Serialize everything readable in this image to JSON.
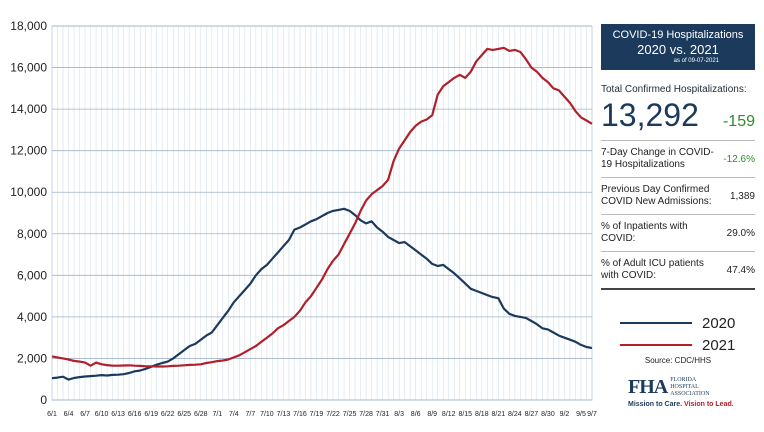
{
  "panel": {
    "title_line1": "COVID-19 Hospitalizations",
    "title_line2": "2020 vs. 2021",
    "as_of": "as of 09-07-2021",
    "total_label": "Total Confirmed Hospitalizations:",
    "total_value": "13,292",
    "total_delta": "-159",
    "stats": [
      {
        "label": "7-Day Change in COVID-19 Hospitalizations",
        "value": "-12.6%"
      },
      {
        "label": "Previous Day Confirmed COVID New Admissions:",
        "value": "1,389"
      },
      {
        "label": "% of Inpatients with COVID:",
        "value": "29.0%"
      },
      {
        "label": "% of Adult ICU patients with COVID:",
        "value": "47.4%"
      }
    ],
    "source": "Source: CDC/HHS",
    "logo_text": "FHA",
    "logo_name_1": "FLORIDA",
    "logo_name_2": "HOSPITAL",
    "logo_name_3": "ASSOCIATION",
    "tagline_1": "Mission to Care.",
    "tagline_2": "Vision to Lead."
  },
  "colors": {
    "navy": "#1b3a5c",
    "red": "#b0202a",
    "green": "#2e8b2e"
  },
  "chart_data": {
    "type": "line",
    "ylim": [
      0,
      18000
    ],
    "yticks": [
      "0",
      "2,000",
      "4,000",
      "6,000",
      "8,000",
      "10,000",
      "12,000",
      "14,000",
      "16,000",
      "18,000"
    ],
    "ytick_values": [
      0,
      2000,
      4000,
      6000,
      8000,
      10000,
      12000,
      14000,
      16000,
      18000
    ],
    "xlabels": [
      "6/1",
      "6/4",
      "6/7",
      "6/10",
      "6/13",
      "6/16",
      "6/19",
      "6/22",
      "6/25",
      "6/28",
      "7/1",
      "7/4",
      "7/7",
      "7/10",
      "7/13",
      "7/16",
      "7/19",
      "7/22",
      "7/25",
      "7/28",
      "7/31",
      "8/3",
      "8/6",
      "8/9",
      "8/12",
      "8/15",
      "8/18",
      "8/21",
      "8/24",
      "8/27",
      "8/30",
      "9/2",
      "9/5",
      "9/7"
    ],
    "xlabel_days": [
      0,
      3,
      6,
      9,
      12,
      15,
      18,
      21,
      24,
      27,
      30,
      33,
      36,
      39,
      42,
      45,
      48,
      51,
      54,
      57,
      60,
      63,
      66,
      69,
      72,
      75,
      78,
      81,
      84,
      87,
      90,
      93,
      96,
      98
    ],
    "x_days": [
      0,
      1,
      2,
      3,
      4,
      5,
      6,
      7,
      8,
      9,
      10,
      11,
      12,
      13,
      14,
      15,
      16,
      17,
      18,
      19,
      20,
      21,
      22,
      23,
      24,
      25,
      26,
      27,
      28,
      29,
      30,
      31,
      32,
      33,
      34,
      35,
      36,
      37,
      38,
      39,
      40,
      41,
      42,
      43,
      44,
      45,
      46,
      47,
      48,
      49,
      50,
      51,
      52,
      53,
      54,
      55,
      56,
      57,
      58,
      59,
      60,
      61,
      62,
      63,
      64,
      65,
      66,
      67,
      68,
      69,
      70,
      71,
      72,
      73,
      74,
      75,
      76,
      77,
      78,
      79,
      80,
      81,
      82,
      83,
      84,
      85,
      86,
      87,
      88,
      89,
      90,
      91,
      92,
      93,
      94,
      95,
      96,
      97,
      98
    ],
    "grid": true,
    "series": [
      {
        "name": "2020",
        "color": "#1b3a5c",
        "values": [
          1050,
          1080,
          1120,
          980,
          1060,
          1100,
          1130,
          1150,
          1170,
          1200,
          1180,
          1210,
          1220,
          1240,
          1300,
          1380,
          1420,
          1500,
          1600,
          1700,
          1780,
          1850,
          2000,
          2200,
          2400,
          2600,
          2700,
          2900,
          3100,
          3250,
          3600,
          3950,
          4300,
          4700,
          5000,
          5300,
          5600,
          6000,
          6300,
          6500,
          6800,
          7100,
          7400,
          7700,
          8200,
          8300,
          8450,
          8600,
          8700,
          8850,
          9000,
          9100,
          9150,
          9200,
          9100,
          8900,
          8650,
          8500,
          8600,
          8300,
          8100,
          7850,
          7700,
          7550,
          7600,
          7400,
          7200,
          7000,
          6800,
          6550,
          6450,
          6500,
          6300,
          6100,
          5850,
          5600,
          5350,
          5250,
          5150,
          5050,
          4950,
          4900,
          4400,
          4150,
          4050,
          4000,
          3950,
          3800,
          3650,
          3450,
          3400,
          3250,
          3100,
          3000,
          2900,
          2800,
          2650,
          2550,
          2500
        ]
      },
      {
        "name": "2021",
        "color": "#b0202a",
        "values": [
          2100,
          2050,
          2000,
          1950,
          1880,
          1850,
          1800,
          1650,
          1800,
          1720,
          1680,
          1650,
          1650,
          1660,
          1670,
          1650,
          1640,
          1620,
          1620,
          1610,
          1610,
          1620,
          1640,
          1650,
          1670,
          1690,
          1700,
          1720,
          1780,
          1820,
          1870,
          1900,
          1950,
          2050,
          2150,
          2300,
          2450,
          2600,
          2800,
          3000,
          3200,
          3450,
          3600,
          3800,
          4000,
          4300,
          4700,
          5000,
          5400,
          5800,
          6300,
          6700,
          7000,
          7500,
          8000,
          8500,
          9100,
          9600,
          9900,
          10100,
          10300,
          10600,
          11500,
          12100,
          12500,
          12900,
          13200,
          13400,
          13500,
          13700,
          14700,
          15100,
          15300,
          15500,
          15650,
          15500,
          15800,
          16300,
          16600,
          16900,
          16850,
          16900,
          16950,
          16800,
          16850,
          16750,
          16400,
          16000,
          15800,
          15500,
          15300,
          15000,
          14900,
          14600,
          14300,
          13900,
          13600,
          13450,
          13292
        ]
      }
    ]
  }
}
